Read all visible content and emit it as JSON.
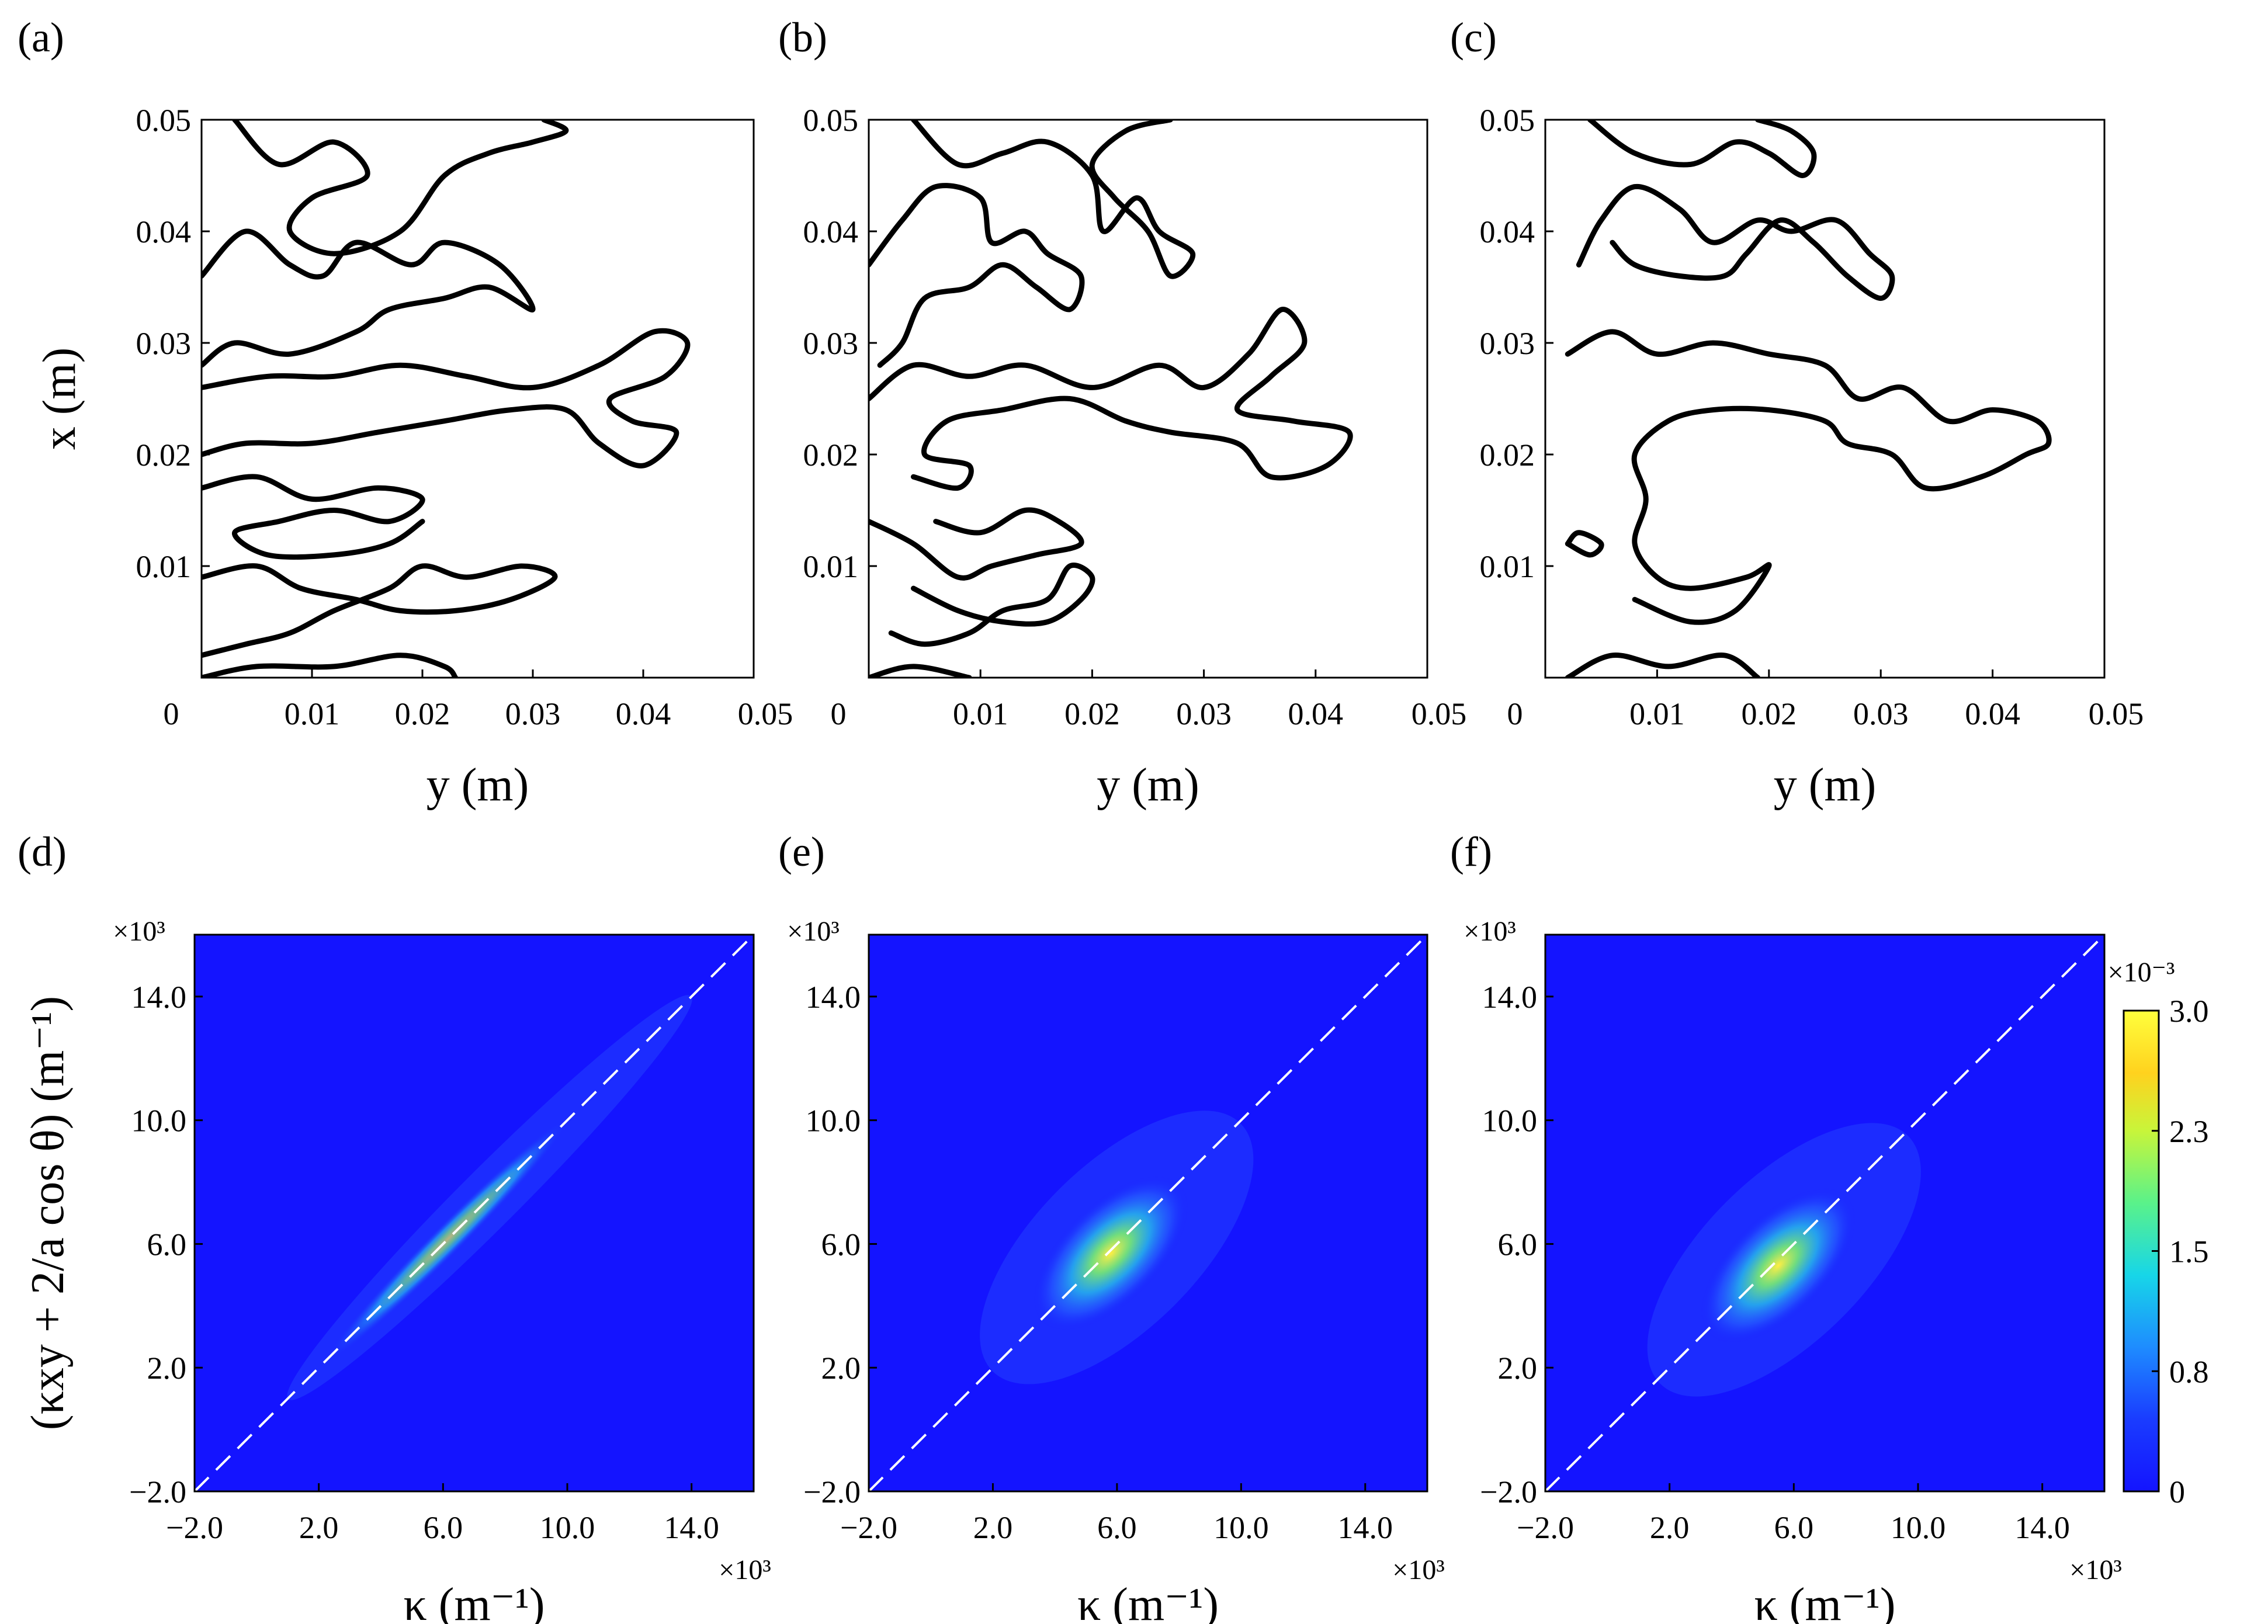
{
  "figure": {
    "panel_labels": [
      "(a)",
      "(b)",
      "(c)",
      "(d)",
      "(e)",
      "(f)"
    ]
  },
  "chart_data": [
    {
      "panel": "(a)",
      "type": "contour",
      "xlabel": "y (m)",
      "ylabel": "x (m)",
      "xlim": [
        0,
        0.05
      ],
      "ylim": [
        0,
        0.05
      ],
      "xticks": [
        "0",
        "0.01",
        "0.02",
        "0.03",
        "0.04",
        "0.05"
      ],
      "yticks": [
        "0.01",
        "0.02",
        "0.03",
        "0.04",
        "0.05"
      ],
      "contours": [
        [
          [
            0.003,
            0.05
          ],
          [
            0.007,
            0.046
          ],
          [
            0.012,
            0.048
          ],
          [
            0.015,
            0.045
          ],
          [
            0.01,
            0.043
          ],
          [
            0.008,
            0.04
          ],
          [
            0.012,
            0.038
          ],
          [
            0.018,
            0.04
          ],
          [
            0.022,
            0.045
          ],
          [
            0.026,
            0.047
          ],
          [
            0.03,
            0.048
          ],
          [
            0.033,
            0.049
          ],
          [
            0.031,
            0.05
          ]
        ],
        [
          [
            0.0,
            0.036
          ],
          [
            0.004,
            0.04
          ],
          [
            0.008,
            0.037
          ],
          [
            0.011,
            0.036
          ],
          [
            0.014,
            0.039
          ],
          [
            0.019,
            0.037
          ],
          [
            0.022,
            0.039
          ],
          [
            0.027,
            0.037
          ],
          [
            0.03,
            0.033
          ],
          [
            0.026,
            0.035
          ],
          [
            0.022,
            0.034
          ],
          [
            0.017,
            0.033
          ],
          [
            0.014,
            0.031
          ],
          [
            0.008,
            0.029
          ],
          [
            0.003,
            0.03
          ],
          [
            0.0,
            0.028
          ]
        ],
        [
          [
            0.0,
            0.026
          ],
          [
            0.006,
            0.027
          ],
          [
            0.012,
            0.027
          ],
          [
            0.018,
            0.028
          ],
          [
            0.024,
            0.027
          ],
          [
            0.03,
            0.026
          ],
          [
            0.036,
            0.028
          ],
          [
            0.041,
            0.031
          ],
          [
            0.044,
            0.03
          ],
          [
            0.042,
            0.027
          ],
          [
            0.037,
            0.025
          ],
          [
            0.039,
            0.023
          ],
          [
            0.043,
            0.022
          ],
          [
            0.04,
            0.019
          ],
          [
            0.036,
            0.021
          ],
          [
            0.033,
            0.024
          ],
          [
            0.028,
            0.024
          ],
          [
            0.022,
            0.023
          ],
          [
            0.016,
            0.022
          ],
          [
            0.01,
            0.021
          ],
          [
            0.004,
            0.021
          ],
          [
            0.0,
            0.02
          ]
        ],
        [
          [
            0.0,
            0.017
          ],
          [
            0.005,
            0.018
          ],
          [
            0.01,
            0.016
          ],
          [
            0.016,
            0.017
          ],
          [
            0.02,
            0.016
          ],
          [
            0.017,
            0.014
          ],
          [
            0.012,
            0.015
          ],
          [
            0.007,
            0.014
          ],
          [
            0.003,
            0.013
          ],
          [
            0.006,
            0.011
          ],
          [
            0.012,
            0.011
          ],
          [
            0.017,
            0.012
          ],
          [
            0.02,
            0.014
          ]
        ],
        [
          [
            0.0,
            0.009
          ],
          [
            0.005,
            0.01
          ],
          [
            0.009,
            0.008
          ],
          [
            0.014,
            0.007
          ],
          [
            0.018,
            0.006
          ],
          [
            0.023,
            0.006
          ],
          [
            0.028,
            0.007
          ],
          [
            0.032,
            0.009
          ],
          [
            0.029,
            0.01
          ],
          [
            0.024,
            0.009
          ],
          [
            0.02,
            0.01
          ],
          [
            0.017,
            0.008
          ],
          [
            0.012,
            0.006
          ],
          [
            0.008,
            0.004
          ],
          [
            0.004,
            0.003
          ],
          [
            0.0,
            0.002
          ]
        ],
        [
          [
            0.0,
            0.0
          ],
          [
            0.005,
            0.001
          ],
          [
            0.012,
            0.001
          ],
          [
            0.018,
            0.002
          ],
          [
            0.022,
            0.001
          ],
          [
            0.023,
            0.0
          ]
        ]
      ]
    },
    {
      "panel": "(b)",
      "type": "contour",
      "xlabel": "y (m)",
      "ylabel": "",
      "xlim": [
        0,
        0.05
      ],
      "ylim": [
        0,
        0.05
      ],
      "xticks": [
        "0",
        "0.01",
        "0.02",
        "0.03",
        "0.04",
        "0.05"
      ],
      "yticks": [
        "0.01",
        "0.02",
        "0.03",
        "0.04",
        "0.05"
      ],
      "contours": [
        [
          [
            0.004,
            0.05
          ],
          [
            0.008,
            0.046
          ],
          [
            0.012,
            0.047
          ],
          [
            0.016,
            0.048
          ],
          [
            0.02,
            0.045
          ],
          [
            0.021,
            0.04
          ],
          [
            0.024,
            0.043
          ],
          [
            0.026,
            0.04
          ],
          [
            0.029,
            0.038
          ],
          [
            0.027,
            0.036
          ],
          [
            0.025,
            0.04
          ],
          [
            0.022,
            0.043
          ],
          [
            0.02,
            0.046
          ],
          [
            0.023,
            0.049
          ],
          [
            0.027,
            0.05
          ]
        ],
        [
          [
            0.0,
            0.037
          ],
          [
            0.003,
            0.041
          ],
          [
            0.006,
            0.044
          ],
          [
            0.01,
            0.043
          ],
          [
            0.011,
            0.039
          ],
          [
            0.014,
            0.04
          ],
          [
            0.016,
            0.038
          ],
          [
            0.019,
            0.036
          ],
          [
            0.018,
            0.033
          ],
          [
            0.015,
            0.035
          ],
          [
            0.012,
            0.037
          ],
          [
            0.009,
            0.035
          ],
          [
            0.005,
            0.034
          ],
          [
            0.003,
            0.03
          ],
          [
            0.001,
            0.028
          ]
        ],
        [
          [
            0.0,
            0.025
          ],
          [
            0.004,
            0.028
          ],
          [
            0.009,
            0.027
          ],
          [
            0.014,
            0.028
          ],
          [
            0.02,
            0.026
          ],
          [
            0.026,
            0.028
          ],
          [
            0.03,
            0.026
          ],
          [
            0.034,
            0.029
          ],
          [
            0.037,
            0.033
          ],
          [
            0.039,
            0.03
          ],
          [
            0.036,
            0.027
          ],
          [
            0.033,
            0.024
          ],
          [
            0.038,
            0.023
          ],
          [
            0.043,
            0.022
          ],
          [
            0.041,
            0.019
          ],
          [
            0.036,
            0.018
          ],
          [
            0.033,
            0.021
          ],
          [
            0.027,
            0.022
          ],
          [
            0.023,
            0.023
          ],
          [
            0.018,
            0.025
          ],
          [
            0.012,
            0.024
          ],
          [
            0.007,
            0.023
          ],
          [
            0.005,
            0.02
          ],
          [
            0.009,
            0.019
          ],
          [
            0.008,
            0.017
          ],
          [
            0.004,
            0.018
          ]
        ],
        [
          [
            0.0,
            0.014
          ],
          [
            0.004,
            0.012
          ],
          [
            0.008,
            0.009
          ],
          [
            0.011,
            0.01
          ],
          [
            0.015,
            0.011
          ],
          [
            0.019,
            0.012
          ],
          [
            0.017,
            0.014
          ],
          [
            0.014,
            0.015
          ],
          [
            0.01,
            0.013
          ],
          [
            0.006,
            0.014
          ]
        ],
        [
          [
            0.004,
            0.008
          ],
          [
            0.008,
            0.006
          ],
          [
            0.012,
            0.005
          ],
          [
            0.016,
            0.005
          ],
          [
            0.019,
            0.007
          ],
          [
            0.02,
            0.009
          ],
          [
            0.018,
            0.01
          ],
          [
            0.016,
            0.007
          ],
          [
            0.012,
            0.006
          ],
          [
            0.009,
            0.004
          ],
          [
            0.005,
            0.003
          ],
          [
            0.002,
            0.004
          ]
        ],
        [
          [
            0.0,
            0.0
          ],
          [
            0.004,
            0.001
          ],
          [
            0.009,
            0.0
          ]
        ]
      ]
    },
    {
      "panel": "(c)",
      "type": "contour",
      "xlabel": "y (m)",
      "ylabel": "",
      "xlim": [
        0,
        0.05
      ],
      "ylim": [
        0,
        0.05
      ],
      "xticks": [
        "0",
        "0.01",
        "0.02",
        "0.03",
        "0.04",
        "0.05"
      ],
      "yticks": [
        "0.01",
        "0.02",
        "0.03",
        "0.04",
        "0.05"
      ],
      "contours": [
        [
          [
            0.004,
            0.05
          ],
          [
            0.008,
            0.047
          ],
          [
            0.013,
            0.046
          ],
          [
            0.017,
            0.048
          ],
          [
            0.02,
            0.047
          ],
          [
            0.023,
            0.045
          ],
          [
            0.024,
            0.047
          ],
          [
            0.022,
            0.049
          ],
          [
            0.019,
            0.05
          ]
        ],
        [
          [
            0.003,
            0.037
          ],
          [
            0.005,
            0.041
          ],
          [
            0.008,
            0.044
          ],
          [
            0.012,
            0.042
          ],
          [
            0.015,
            0.039
          ],
          [
            0.019,
            0.041
          ],
          [
            0.022,
            0.04
          ],
          [
            0.026,
            0.041
          ],
          [
            0.029,
            0.038
          ],
          [
            0.031,
            0.036
          ],
          [
            0.03,
            0.034
          ],
          [
            0.027,
            0.036
          ],
          [
            0.024,
            0.039
          ],
          [
            0.021,
            0.041
          ],
          [
            0.018,
            0.038
          ],
          [
            0.016,
            0.036
          ],
          [
            0.012,
            0.036
          ],
          [
            0.008,
            0.037
          ],
          [
            0.006,
            0.039
          ]
        ],
        [
          [
            0.002,
            0.029
          ],
          [
            0.006,
            0.031
          ],
          [
            0.01,
            0.029
          ],
          [
            0.015,
            0.03
          ],
          [
            0.02,
            0.029
          ],
          [
            0.025,
            0.028
          ],
          [
            0.028,
            0.025
          ],
          [
            0.032,
            0.026
          ],
          [
            0.036,
            0.023
          ],
          [
            0.04,
            0.024
          ],
          [
            0.044,
            0.023
          ],
          [
            0.045,
            0.021
          ],
          [
            0.043,
            0.02
          ],
          [
            0.039,
            0.018
          ],
          [
            0.034,
            0.017
          ],
          [
            0.031,
            0.02
          ],
          [
            0.027,
            0.021
          ],
          [
            0.025,
            0.023
          ],
          [
            0.02,
            0.024
          ],
          [
            0.015,
            0.024
          ],
          [
            0.011,
            0.023
          ],
          [
            0.008,
            0.02
          ],
          [
            0.009,
            0.016
          ],
          [
            0.008,
            0.012
          ],
          [
            0.01,
            0.009
          ],
          [
            0.013,
            0.008
          ],
          [
            0.018,
            0.009
          ],
          [
            0.02,
            0.01
          ],
          [
            0.017,
            0.006
          ],
          [
            0.013,
            0.005
          ],
          [
            0.008,
            0.007
          ]
        ],
        [
          [
            0.002,
            0.012
          ],
          [
            0.003,
            0.013
          ],
          [
            0.005,
            0.012
          ],
          [
            0.004,
            0.011
          ],
          [
            0.002,
            0.012
          ]
        ],
        [
          [
            0.002,
            0.0
          ],
          [
            0.006,
            0.002
          ],
          [
            0.011,
            0.001
          ],
          [
            0.016,
            0.002
          ],
          [
            0.019,
            0.0
          ]
        ]
      ]
    },
    {
      "panel": "(d)",
      "type": "heatmap",
      "xlabel": "κ (m⁻¹)",
      "ylabel": "(κxy + 2/a cos θ) (m⁻¹)",
      "xlim": [
        -2.0,
        16.0
      ],
      "ylim": [
        -2.0,
        16.0
      ],
      "xticks": [
        "−2.0",
        "2.0",
        "6.0",
        "10.0",
        "14.0"
      ],
      "yticks": [
        "−2.0",
        "2.0",
        "6.0",
        "10.0",
        "14.0"
      ],
      "x_multiplier": "×10³",
      "y_multiplier": "×10³",
      "reference_line": "y = x (dashed white)",
      "density_peak_center": [
        6.0,
        6.0
      ],
      "description_shape": "narrow ridge along y = x"
    },
    {
      "panel": "(e)",
      "type": "heatmap",
      "xlabel": "κ (m⁻¹)",
      "ylabel": "",
      "xlim": [
        -2.0,
        16.0
      ],
      "ylim": [
        -2.0,
        16.0
      ],
      "xticks": [
        "−2.0",
        "2.0",
        "6.0",
        "10.0",
        "14.0"
      ],
      "yticks": [
        "−2.0",
        "2.0",
        "6.0",
        "10.0",
        "14.0"
      ],
      "x_multiplier": "×10³",
      "y_multiplier": "×10³",
      "reference_line": "y = x (dashed white)",
      "density_peak_center": [
        5.8,
        5.7
      ]
    },
    {
      "panel": "(f)",
      "type": "heatmap",
      "xlabel": "κ (m⁻¹)",
      "ylabel": "",
      "xlim": [
        -2.0,
        16.0
      ],
      "ylim": [
        -2.0,
        16.0
      ],
      "xticks": [
        "−2.0",
        "2.0",
        "6.0",
        "10.0",
        "14.0"
      ],
      "yticks": [
        "−2.0",
        "2.0",
        "6.0",
        "10.0",
        "14.0"
      ],
      "x_multiplier": "×10³",
      "y_multiplier": "×10³",
      "reference_line": "y = x (dashed white)",
      "density_peak_center": [
        5.5,
        5.3
      ],
      "colorbar": {
        "multiplier": "×10⁻³",
        "ticks": [
          "0",
          "0.8",
          "1.5",
          "2.3",
          "3.0"
        ],
        "range": [
          0,
          3.0
        ],
        "colormap": "jet"
      }
    }
  ]
}
